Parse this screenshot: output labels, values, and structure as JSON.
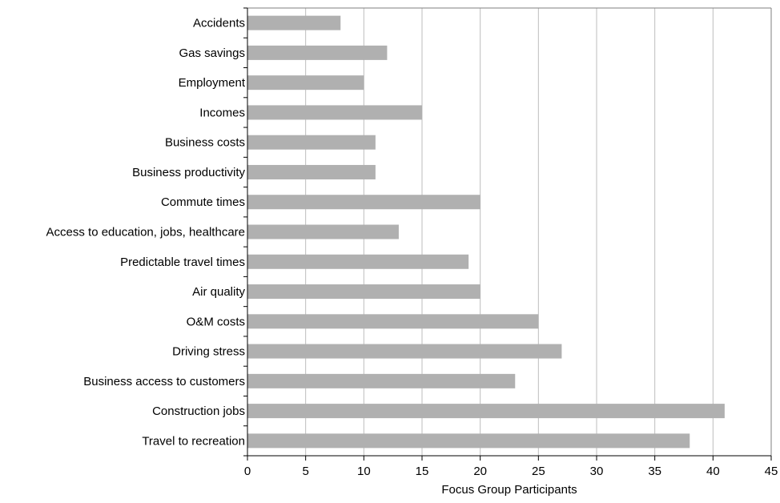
{
  "chart_data": {
    "type": "bar",
    "orientation": "horizontal",
    "categories": [
      "Accidents",
      "Gas savings",
      "Employment",
      "Incomes",
      "Business costs",
      "Business productivity",
      "Commute times",
      "Access to education, jobs, healthcare",
      "Predictable travel times",
      "Air quality",
      "O&M costs",
      "Driving stress",
      "Business access to customers",
      "Construction jobs",
      "Travel to recreation"
    ],
    "values": [
      8,
      12,
      10,
      15,
      11,
      11,
      20,
      13,
      19,
      20,
      25,
      27,
      23,
      41,
      38
    ],
    "xlabel": "Focus Group Participants",
    "ylabel": "",
    "title": "",
    "xlim": [
      0,
      45
    ],
    "xticks": [
      "0",
      "5",
      "10",
      "15",
      "20",
      "25",
      "30",
      "35",
      "40",
      "45"
    ],
    "grid": "vertical",
    "legend": "none",
    "colors": {
      "bar": "#b0b0b0",
      "grid": "#bdbdbd",
      "axis": "#000000",
      "border": "#7f7f7f"
    }
  }
}
